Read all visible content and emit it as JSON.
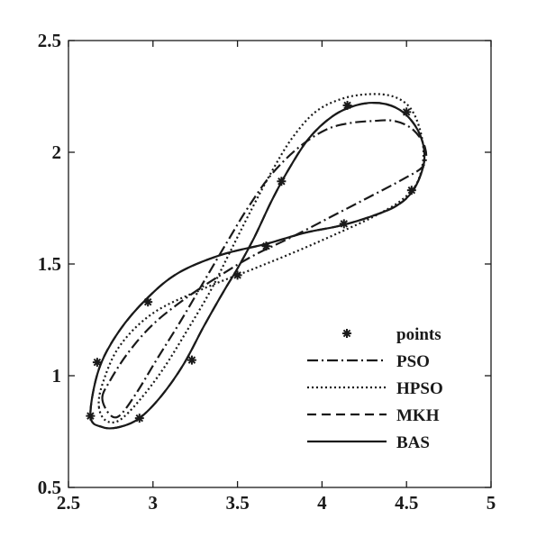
{
  "chart_data": {
    "type": "line",
    "title": "",
    "xlabel": "",
    "ylabel": "",
    "xlim": [
      2.5,
      5
    ],
    "ylim": [
      0.5,
      2.5
    ],
    "x_ticks": [
      2.5,
      3,
      3.5,
      4,
      4.5,
      5
    ],
    "y_ticks": [
      0.5,
      1,
      1.5,
      2,
      2.5
    ],
    "x_tick_labels": [
      "2.5",
      "3",
      "3.5",
      "4",
      "4.5",
      "5"
    ],
    "y_tick_labels": [
      "0.5",
      "1",
      "1.5",
      "2",
      "2.5"
    ],
    "grid": false,
    "legend_position": "bottom-right",
    "points": {
      "name": "points",
      "marker": "asterisk",
      "x": [
        2.63,
        2.92,
        3.23,
        3.5,
        3.76,
        4.15,
        4.5,
        4.53,
        4.13,
        3.67,
        2.97,
        2.67
      ],
      "y": [
        0.82,
        0.81,
        1.07,
        1.45,
        1.87,
        2.21,
        2.18,
        1.83,
        1.68,
        1.58,
        1.33,
        1.06
      ]
    },
    "series": [
      {
        "name": "PSO",
        "dash": "12,4,2,4",
        "x": [
          2.7,
          2.74,
          2.8,
          2.9,
          3.02,
          3.16,
          3.3,
          3.44,
          3.56,
          3.7,
          3.86,
          4.02,
          4.16,
          4.3,
          4.43,
          4.54,
          4.61,
          4.6,
          4.48,
          4.28,
          4.05,
          3.82,
          3.6,
          3.4,
          3.2,
          3.0,
          2.85,
          2.74,
          2.7
        ],
        "y": [
          0.9,
          0.83,
          0.82,
          0.92,
          1.07,
          1.24,
          1.42,
          1.6,
          1.75,
          1.9,
          2.02,
          2.1,
          2.13,
          2.14,
          2.14,
          2.1,
          2.02,
          1.94,
          1.88,
          1.8,
          1.71,
          1.62,
          1.54,
          1.45,
          1.35,
          1.23,
          1.1,
          0.97,
          0.9
        ]
      },
      {
        "name": "HPSO",
        "dash": "2,3",
        "x": [
          2.68,
          2.72,
          2.8,
          2.92,
          3.06,
          3.2,
          3.34,
          3.46,
          3.58,
          3.7,
          3.82,
          3.96,
          4.12,
          4.28,
          4.42,
          4.52,
          4.58,
          4.6,
          4.56,
          4.46,
          4.3,
          4.1,
          3.86,
          3.6,
          3.3,
          3.0,
          2.8,
          2.7,
          2.68
        ],
        "y": [
          0.86,
          0.8,
          0.8,
          0.89,
          1.03,
          1.2,
          1.38,
          1.56,
          1.74,
          1.91,
          2.06,
          2.18,
          2.24,
          2.26,
          2.25,
          2.2,
          2.1,
          1.98,
          1.86,
          1.78,
          1.71,
          1.64,
          1.56,
          1.48,
          1.39,
          1.28,
          1.13,
          0.96,
          0.86
        ]
      },
      {
        "name": "MKH",
        "dash": "10,6",
        "x": [
          2.63,
          2.7,
          2.8,
          2.92,
          3.05,
          3.18,
          3.3,
          3.42,
          3.5,
          3.6,
          3.7,
          3.8,
          3.92,
          4.06,
          4.2,
          4.34,
          4.46,
          4.55,
          4.6,
          4.6,
          4.54,
          4.44,
          4.28,
          4.1,
          3.9,
          3.67,
          3.4,
          3.15,
          2.97,
          2.8,
          2.68,
          2.63
        ],
        "y": [
          0.82,
          0.77,
          0.77,
          0.81,
          0.91,
          1.05,
          1.22,
          1.38,
          1.48,
          1.62,
          1.78,
          1.92,
          2.06,
          2.16,
          2.21,
          2.22,
          2.19,
          2.12,
          2.03,
          1.94,
          1.83,
          1.76,
          1.71,
          1.67,
          1.64,
          1.59,
          1.54,
          1.46,
          1.35,
          1.2,
          1.03,
          0.82
        ]
      },
      {
        "name": "BAS",
        "dash": "",
        "x": [
          2.63,
          2.7,
          2.8,
          2.92,
          3.05,
          3.18,
          3.3,
          3.42,
          3.5,
          3.6,
          3.7,
          3.8,
          3.92,
          4.06,
          4.2,
          4.34,
          4.46,
          4.55,
          4.6,
          4.6,
          4.54,
          4.44,
          4.28,
          4.1,
          3.9,
          3.67,
          3.4,
          3.15,
          2.97,
          2.8,
          2.68,
          2.63
        ],
        "y": [
          0.82,
          0.77,
          0.77,
          0.81,
          0.91,
          1.05,
          1.22,
          1.38,
          1.48,
          1.62,
          1.78,
          1.92,
          2.06,
          2.16,
          2.21,
          2.22,
          2.19,
          2.12,
          2.03,
          1.94,
          1.83,
          1.76,
          1.71,
          1.67,
          1.64,
          1.59,
          1.54,
          1.46,
          1.35,
          1.2,
          1.03,
          0.82
        ]
      }
    ],
    "colors": {
      "line": "#1a1a1a",
      "background": "#ffffff"
    }
  }
}
